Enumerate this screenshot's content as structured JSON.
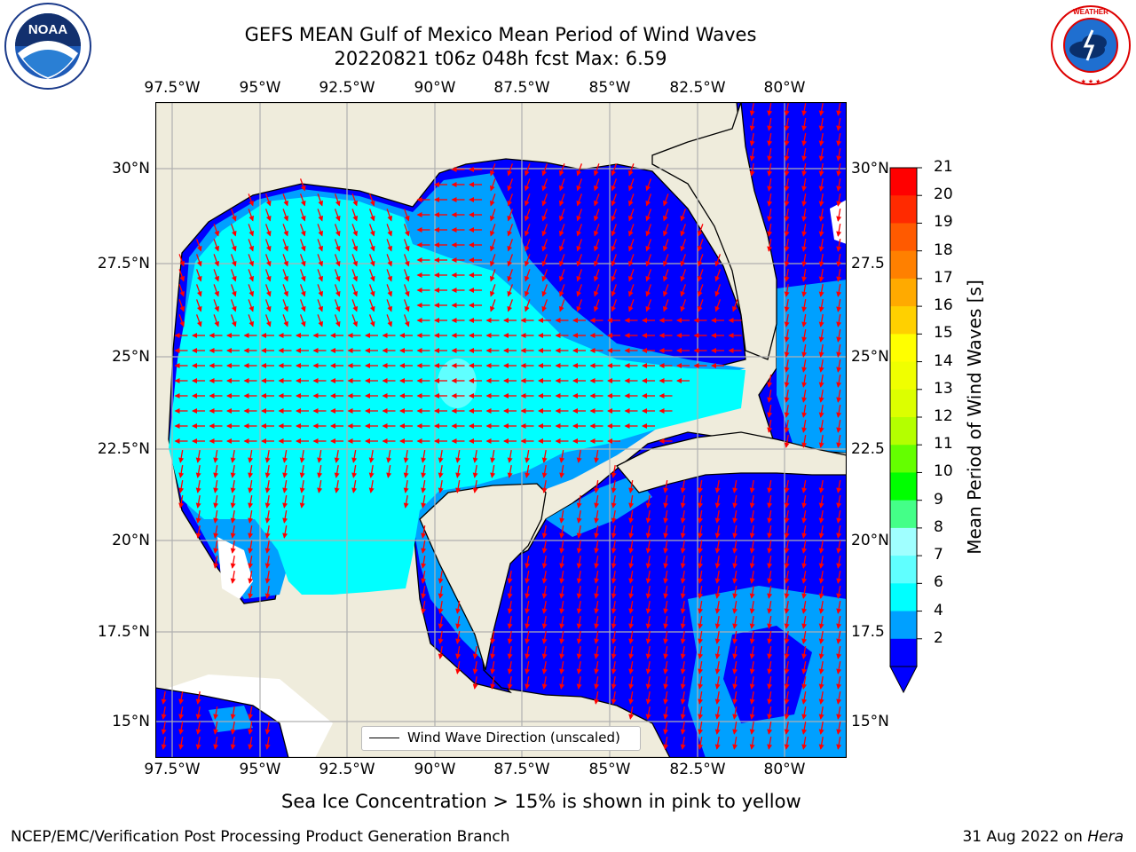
{
  "title": {
    "line1": "GEFS MEAN Gulf of Mexico Mean Period of Wind Waves",
    "line2": "20220821 t06z 048h fcst   Max: 6.59"
  },
  "logos": {
    "left": {
      "name": "noaa-logo",
      "text": "NOAA",
      "ring_text": "NATIONAL OCEANIC AND ATMOSPHERIC ADMINISTRATION · U.S. DEPARTMENT OF COMMERCE"
    },
    "right": {
      "name": "nws-logo",
      "ring_text": "NATIONAL WEATHER SERVICE"
    }
  },
  "map": {
    "lon_labels": [
      "97.5°W",
      "95°W",
      "92.5°W",
      "90°W",
      "87.5°W",
      "85°W",
      "82.5°W",
      "80°W"
    ],
    "lat_labels_left": [
      "30°N",
      "27.5°N",
      "25°N",
      "22.5°N",
      "20°N",
      "17.5°N",
      "15°N"
    ],
    "lat_labels_right": [
      "30°N",
      "27.5",
      "25°N",
      "22.5",
      "20°N",
      "17.5",
      "15°N"
    ],
    "land_color": "#efecdc",
    "arrow_color": "#ff0000",
    "grid_color": "#b0b0b0"
  },
  "legend": {
    "label": "Wind Wave Direction (unscaled)"
  },
  "colorbar": {
    "label": "Mean Period of Wind Waves [s]",
    "ticks": [
      "21",
      "20",
      "19",
      "18",
      "17",
      "16",
      "15",
      "14",
      "13",
      "12",
      "11",
      "10",
      "9",
      "8",
      "7",
      "6",
      "4",
      "2"
    ],
    "colors": [
      "#ff0000",
      "#ff2a00",
      "#ff5a00",
      "#ff8000",
      "#ffaa00",
      "#ffd000",
      "#ffff00",
      "#f0ff00",
      "#dcff00",
      "#b4ff00",
      "#64ff00",
      "#00ff00",
      "#44ff88",
      "#a0ffff",
      "#60ffff",
      "#00ffff",
      "#00a0ff",
      "#0000ff"
    ]
  },
  "subtitle": "Sea Ice Concentration > 15% is shown in pink to yellow",
  "footer": {
    "left": "NCEP/EMC/Verification Post Processing Product Generation Branch",
    "right_date": "31 Aug 2022 on ",
    "right_host": "Hera"
  }
}
